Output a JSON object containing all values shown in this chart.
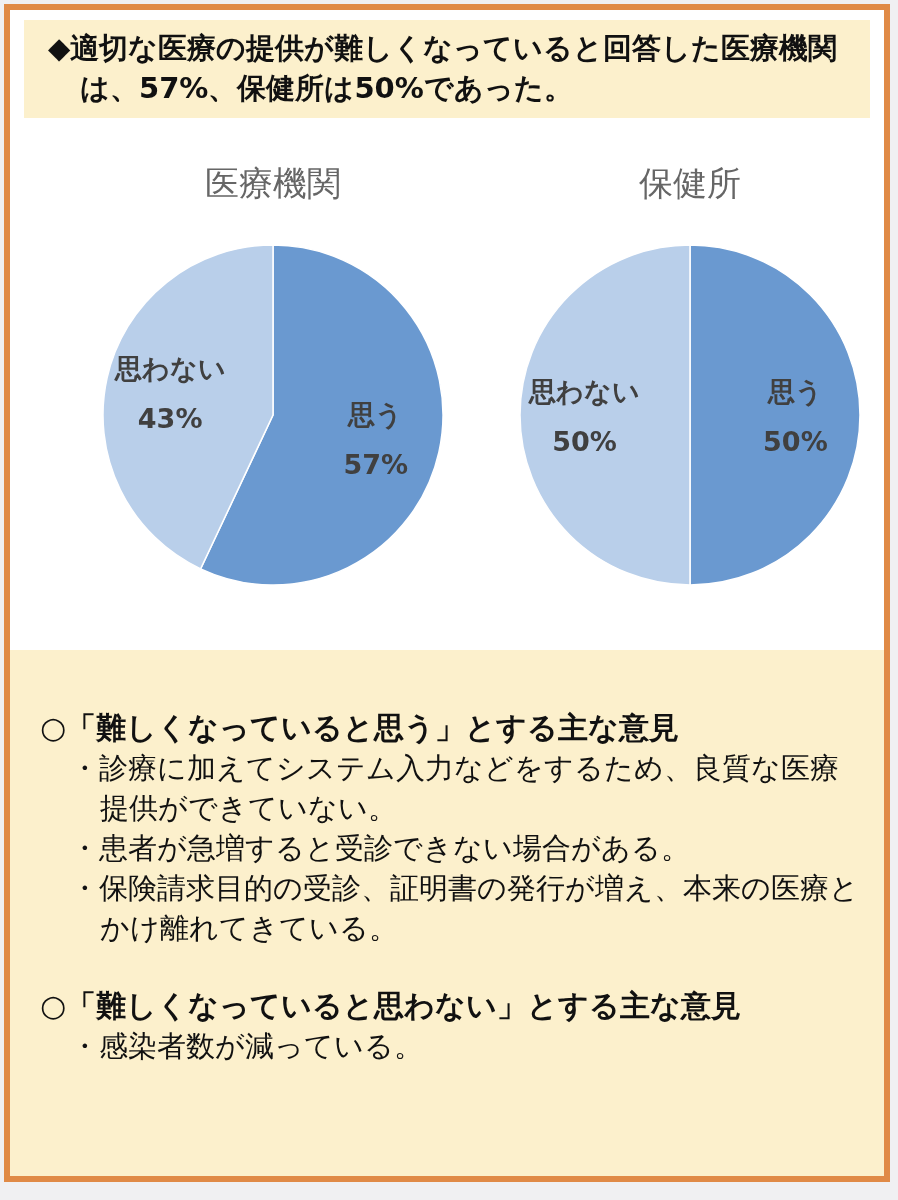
{
  "chart_data": [
    {
      "type": "other",
      "title": "◆適切な医療の提供が難しくなっていると回答した医療機関は、57%、保健所は50%であった。"
    },
    {
      "type": "pie",
      "title": "医療機関",
      "categories": [
        "思う",
        "思わない"
      ],
      "values": [
        57,
        43
      ],
      "value_labels": [
        "57%",
        "43%"
      ],
      "colors": [
        "#6a99d0",
        "#b9cfea"
      ]
    },
    {
      "type": "pie",
      "title": "保健所",
      "categories": [
        "思う",
        "思わない"
      ],
      "values": [
        50,
        50
      ],
      "value_labels": [
        "50%",
        "50%"
      ],
      "colors": [
        "#6a99d0",
        "#b9cfea"
      ]
    },
    {
      "type": "other",
      "title": "○「難しくなっていると思う」とする主な意見",
      "annotations": [
        "・診療に加えてシステム入力などをするため、良質な医療提供ができていない。",
        "・患者が急増すると受診できない場合がある。",
        "・保険請求目的の受診、証明書の発行が増え、本来の医療とかけ離れてきている。"
      ]
    },
    {
      "type": "other",
      "title": "○「難しくなっていると思わない」とする主な意見",
      "annotations": [
        "・感染者数が減っている。"
      ]
    }
  ]
}
